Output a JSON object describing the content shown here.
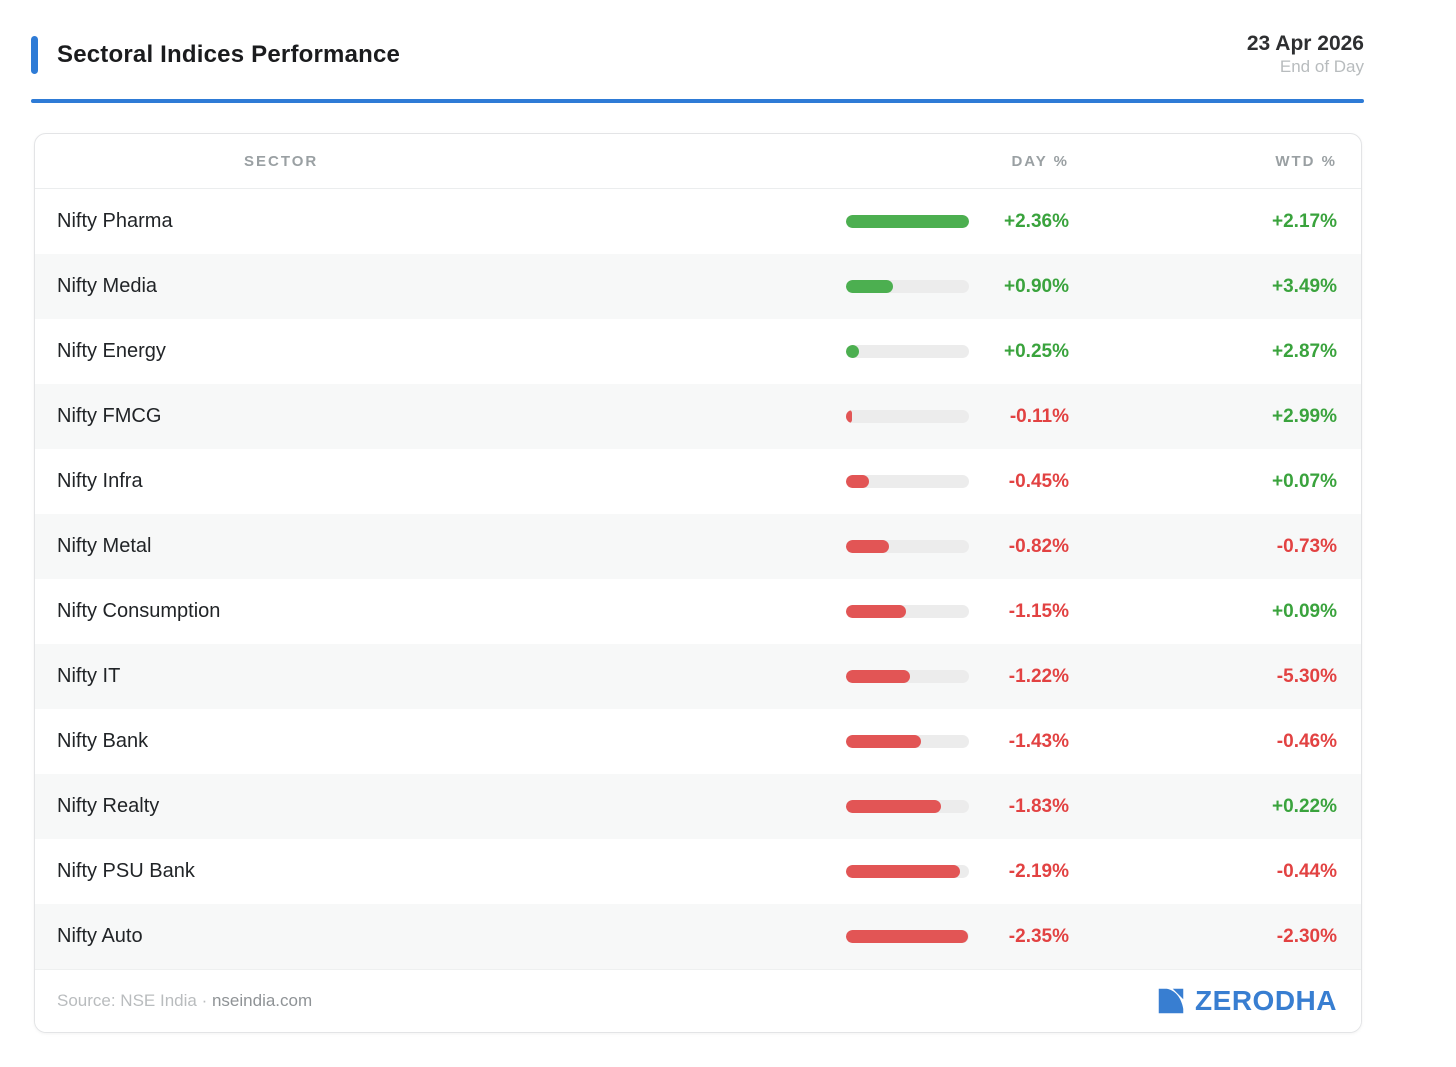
{
  "header": {
    "title": "Sectoral Indices Performance",
    "date": "23 Apr 2026",
    "period": "End of Day"
  },
  "table": {
    "columns": [
      "SECTOR",
      "DAY %",
      "WTD %"
    ]
  },
  "chart_data": {
    "type": "bar",
    "title": "Sectoral Indices Performance",
    "categories": [
      "Nifty Pharma",
      "Nifty Media",
      "Nifty Energy",
      "Nifty FMCG",
      "Nifty Infra",
      "Nifty Metal",
      "Nifty Consumption",
      "Nifty IT",
      "Nifty Bank",
      "Nifty Realty",
      "Nifty PSU Bank",
      "Nifty Auto"
    ],
    "series": [
      {
        "name": "DAY %",
        "values": [
          2.36,
          0.9,
          0.25,
          -0.11,
          -0.45,
          -0.82,
          -1.15,
          -1.22,
          -1.43,
          -1.83,
          -2.19,
          -2.35
        ]
      },
      {
        "name": "WTD %",
        "values": [
          2.17,
          3.49,
          2.87,
          2.99,
          0.07,
          -0.73,
          0.09,
          -5.3,
          -0.46,
          0.22,
          -0.44,
          -2.3
        ]
      }
    ],
    "bar_scale_max_abs": 2.36,
    "value_format": "signed_percent_2dp",
    "layout": "horizontal bars show magnitude of DAY % only; grid off; no axis ticks"
  },
  "footer": {
    "source_prefix": "Source: NSE India · ",
    "source_link": "nseindia.com",
    "brand": "ZERODHA"
  },
  "colors": {
    "accent_blue": "#2e7bd6",
    "brand_blue": "#387ed1",
    "positive_text": "#3aa33d",
    "negative_text": "#e24242",
    "bar_positive": "#4caf50",
    "bar_negative": "#e25555",
    "bar_track": "#ececec",
    "row_alt_bg": "#f7f8f8"
  }
}
